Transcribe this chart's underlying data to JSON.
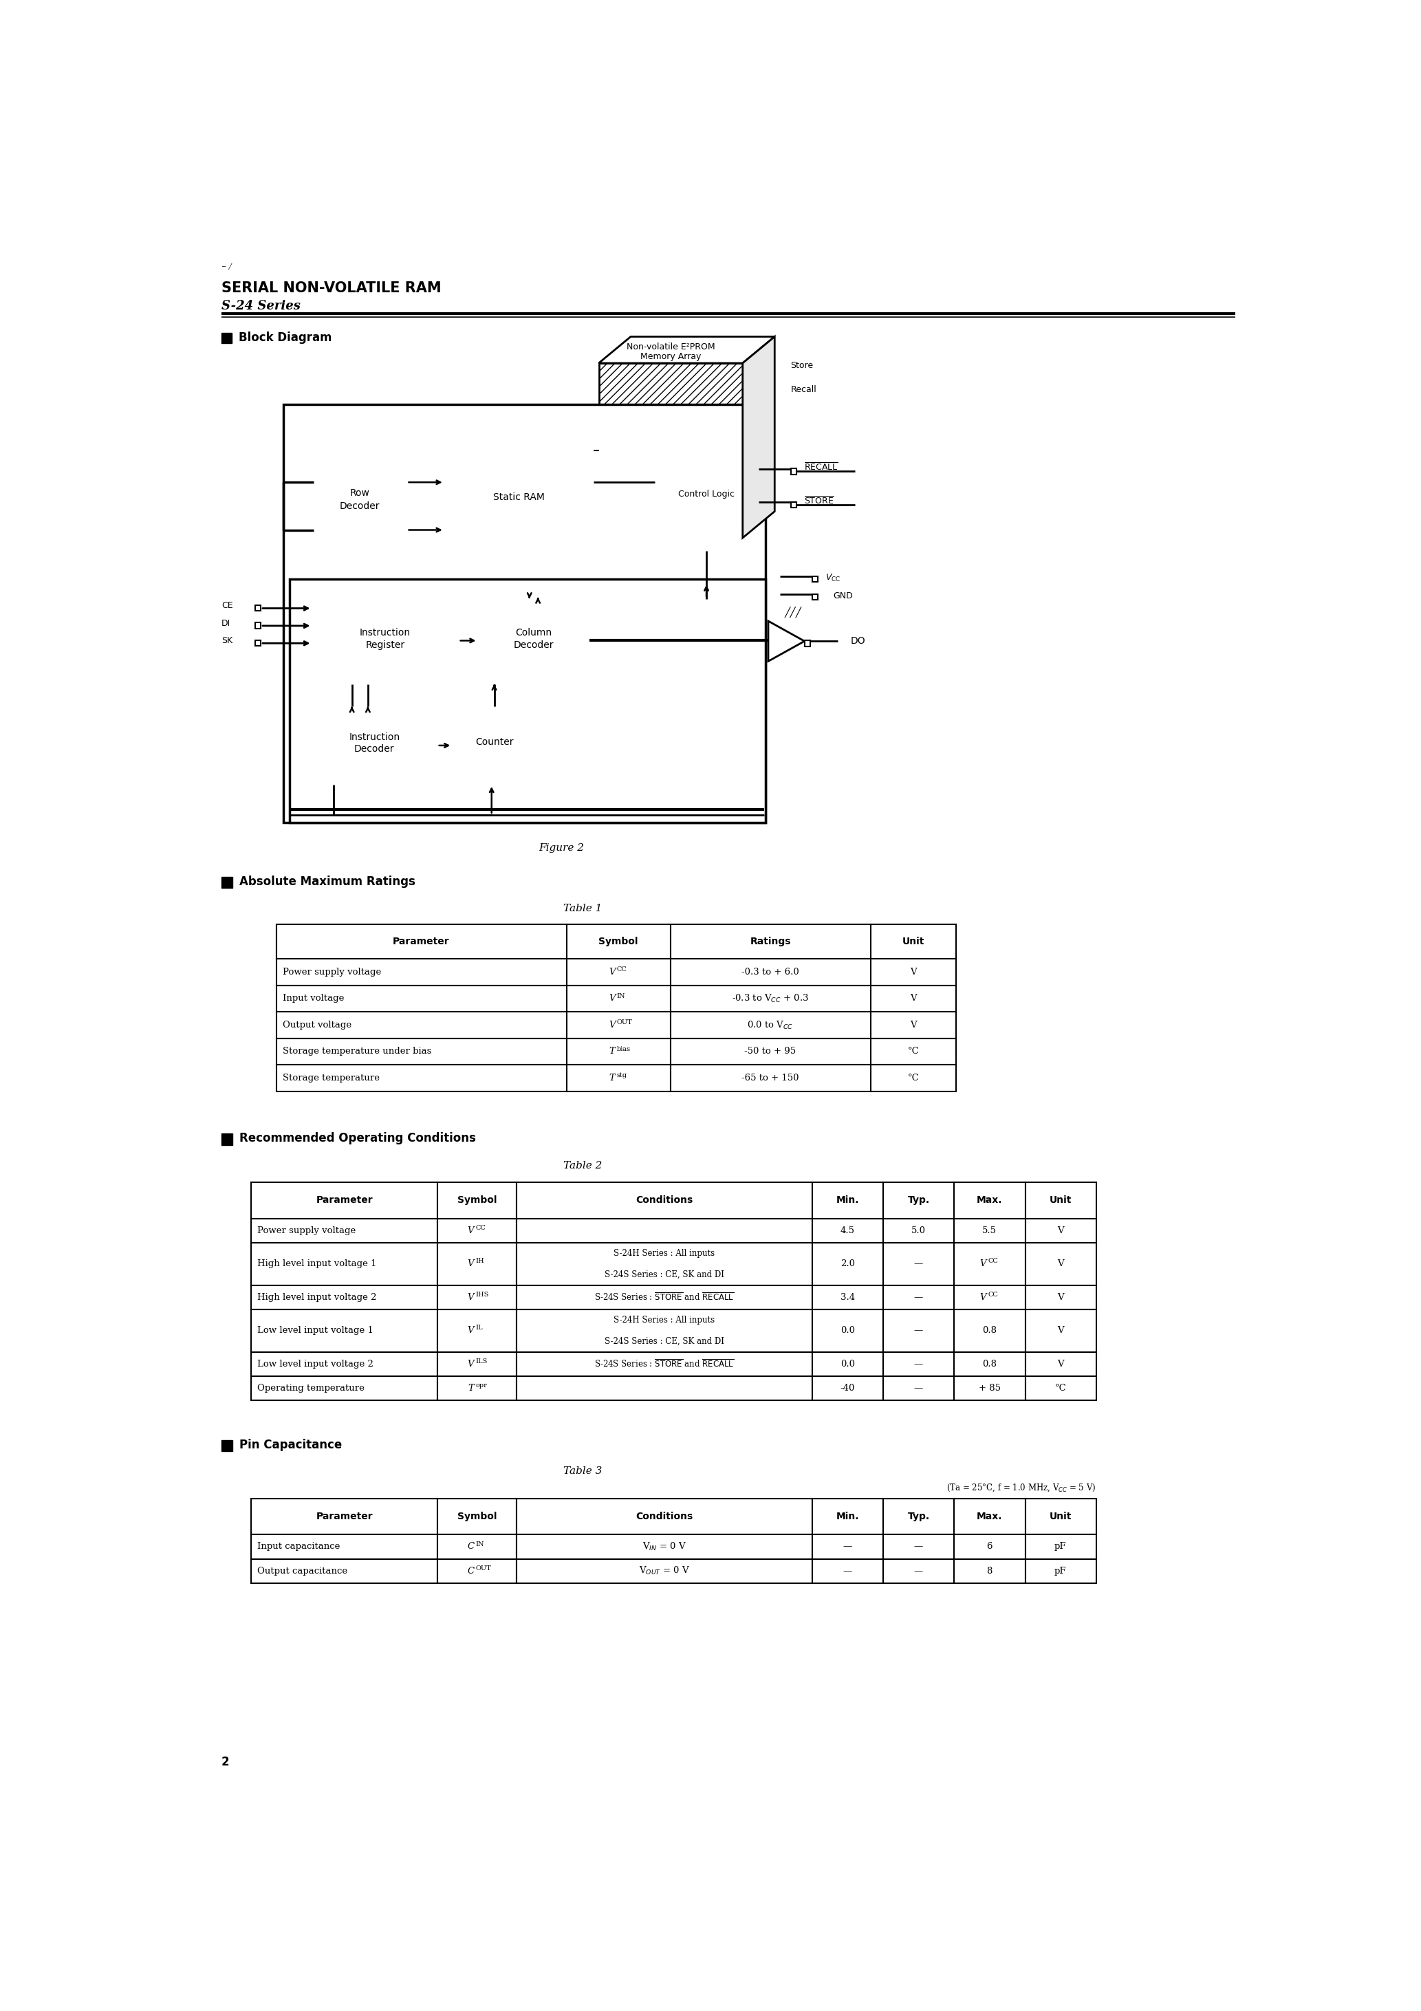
{
  "title1": "SERIAL NON-VOLATILE RAM",
  "title2": "S-24 Series",
  "section1": "Block Diagram",
  "figure_caption": "Figure 2",
  "section2": "Absolute Maximum Ratings",
  "table1_title": "Table 1",
  "table1_headers": [
    "Parameter",
    "Symbol",
    "Ratings",
    "Unit"
  ],
  "table1_rows": [
    [
      "Power supply voltage",
      "V_CC",
      "-0.3 to + 6.0",
      "V"
    ],
    [
      "Input voltage",
      "V_IN",
      "-0.3 to V_CC + 0.3",
      "V"
    ],
    [
      "Output voltage",
      "V_OUT",
      "0.0 to V_CC",
      "V"
    ],
    [
      "Storage temperature under bias",
      "T_bias",
      "-50 to + 95",
      "°C"
    ],
    [
      "Storage temperature",
      "T_stg",
      "-65 to + 150",
      "°C"
    ]
  ],
  "section3": "Recommended Operating Conditions",
  "table2_title": "Table 2",
  "table2_headers": [
    "Parameter",
    "Symbol",
    "Conditions",
    "Min.",
    "Typ.",
    "Max.",
    "Unit"
  ],
  "table2_rows": [
    [
      "Power supply voltage",
      "V_CC",
      "",
      "4.5",
      "5.0",
      "5.5",
      "V"
    ],
    [
      "High level input voltage 1",
      "V_IH",
      "S-24H Series : All inputs\nS-24S Series : CE, SK and DI",
      "2.0",
      "—",
      "V_CC",
      "V"
    ],
    [
      "High level input voltage 2",
      "V_IHS",
      "S-24S Series : STORE and RECALL",
      "3.4",
      "—",
      "V_CC",
      "V"
    ],
    [
      "Low level input voltage 1",
      "V_IL",
      "S-24H Series : All inputs\nS-24S Series : CE, SK and DI",
      "0.0",
      "—",
      "0.8",
      "V"
    ],
    [
      "Low level input voltage 2",
      "V_ILS",
      "S-24S Series : STORE and RECALL",
      "0.0",
      "—",
      "0.8",
      "V"
    ],
    [
      "Operating temperature",
      "T_opr",
      "",
      "-40",
      "—",
      "+ 85",
      "°C"
    ]
  ],
  "section4": "Pin Capacitance",
  "table3_title": "Table 3",
  "table3_note": "(Ta = 25°C, f = 1.0 MHz, V_CC = 5 V)",
  "table3_headers": [
    "Parameter",
    "Symbol",
    "Conditions",
    "Min.",
    "Typ.",
    "Max.",
    "Unit"
  ],
  "table3_rows": [
    [
      "Input capacitance",
      "C_IN",
      "V_IN = 0 V",
      "—",
      "—",
      "6",
      "pF"
    ],
    [
      "Output capacitance",
      "C_OUT",
      "V_OUT = 0 V",
      "—",
      "—",
      "8",
      "pF"
    ]
  ],
  "page_number": "2",
  "bg_color": "#ffffff"
}
